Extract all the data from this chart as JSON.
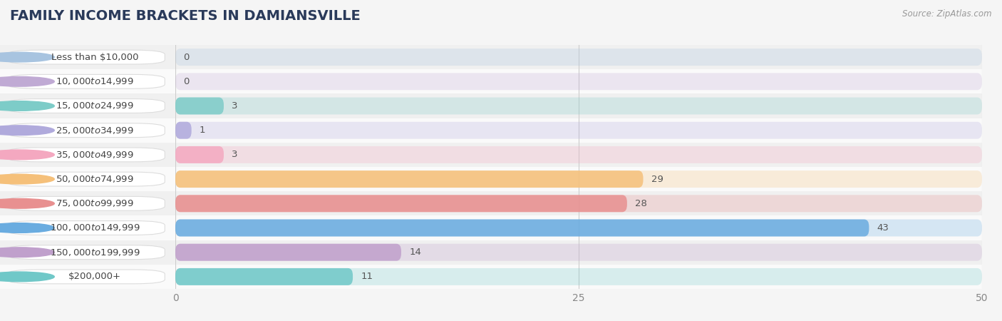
{
  "title": "FAMILY INCOME BRACKETS IN DAMIANSVILLE",
  "source": "Source: ZipAtlas.com",
  "categories": [
    "Less than $10,000",
    "$10,000 to $14,999",
    "$15,000 to $24,999",
    "$25,000 to $34,999",
    "$35,000 to $49,999",
    "$50,000 to $74,999",
    "$75,000 to $99,999",
    "$100,000 to $149,999",
    "$150,000 to $199,999",
    "$200,000+"
  ],
  "values": [
    0,
    0,
    3,
    1,
    3,
    29,
    28,
    43,
    14,
    11
  ],
  "bar_colors": [
    "#a8c4e0",
    "#c0aad4",
    "#7dccc8",
    "#b0aadc",
    "#f4a8c0",
    "#f5c07a",
    "#e89090",
    "#6aace0",
    "#c0a0cc",
    "#70c8c8"
  ],
  "row_bg_colors": [
    "#f0f0f0",
    "#fafafa"
  ],
  "label_bg_color": "#ffffff",
  "label_border_color": "#dddddd",
  "xlim": [
    0,
    50
  ],
  "xticks": [
    0,
    25,
    50
  ],
  "grid_color": "#cccccc",
  "background_color": "#f5f5f5",
  "title_fontsize": 14,
  "label_fontsize": 9.5,
  "value_fontsize": 9.5,
  "tick_fontsize": 10,
  "title_color": "#2a3a5a",
  "label_color": "#444444",
  "value_color": "#555555",
  "source_color": "#999999",
  "source_fontsize": 8.5
}
